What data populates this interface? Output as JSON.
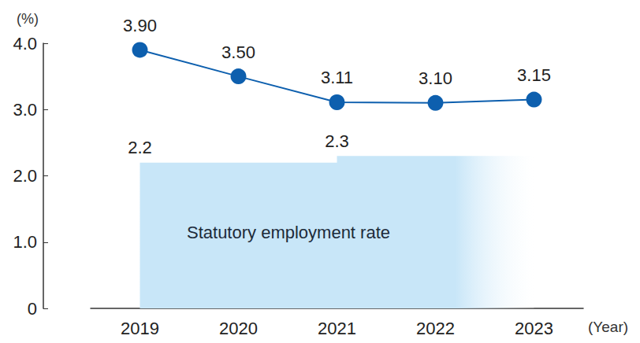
{
  "chart_data": {
    "type": "line",
    "categories": [
      "2019",
      "2020",
      "2021",
      "2022",
      "2023"
    ],
    "xlabel": "(Year)",
    "ylabel": "(%)",
    "ylim": [
      0,
      4
    ],
    "yticks": [
      0,
      {
        "value": 1,
        "label": "1.0"
      },
      {
        "value": 2,
        "label": "2.0"
      },
      {
        "value": 3,
        "label": "3.0"
      },
      {
        "value": 4,
        "label": "4.0"
      }
    ],
    "grid": false,
    "data_labels": true,
    "series": [
      {
        "name": "Statutory employment rate",
        "type": "area",
        "line_style": "step",
        "color": "#c8e6f8",
        "values": [
          2.2,
          2.2,
          2.3,
          2.3,
          2.3
        ],
        "value_labels": [
          "2.2",
          null,
          "2.3",
          null,
          null
        ]
      },
      {
        "type": "line",
        "color": "#0d5fae",
        "marker": "circle",
        "values": [
          3.9,
          3.5,
          3.11,
          3.1,
          3.15
        ],
        "value_labels": [
          "3.90",
          "3.50",
          "3.11",
          "3.10",
          "3.15"
        ]
      }
    ]
  }
}
